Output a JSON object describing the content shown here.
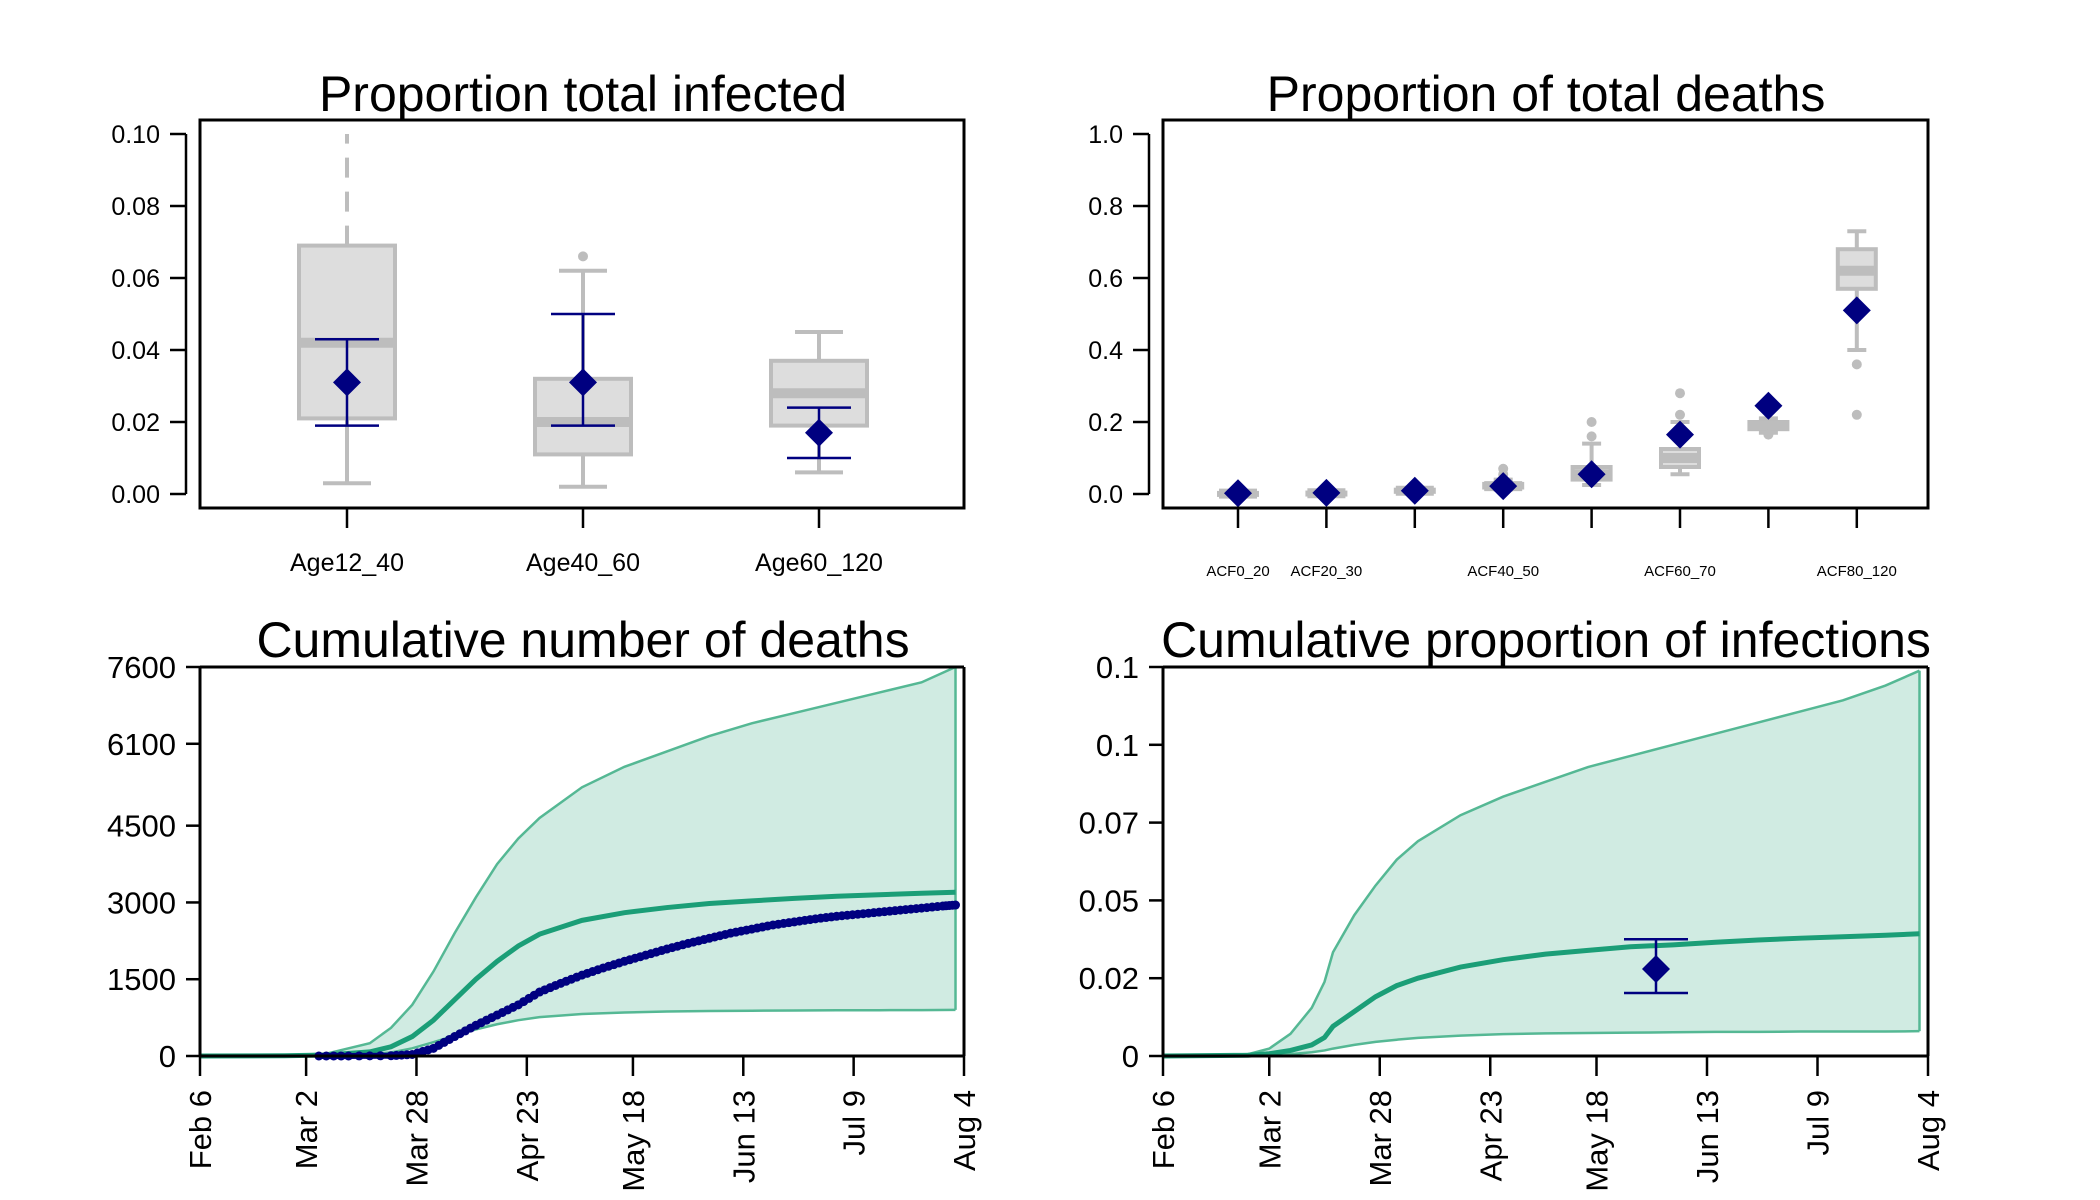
{
  "colors": {
    "box_fill": "#dddddd",
    "box_stroke": "#bdbdbd",
    "observed": "#000080",
    "band_fill": "#d0ebe2",
    "band_line": "#55b894",
    "median_line": "#1b9e77"
  },
  "chart_data": [
    {
      "type": "box",
      "title": "Proportion total infected",
      "categories": [
        "Age12_40",
        "Age40_60",
        "Age60_120"
      ],
      "ylim": [
        0,
        0.1
      ],
      "yticks": [
        "0.00",
        "0.02",
        "0.04",
        "0.06",
        "0.08",
        "0.10"
      ],
      "ytick_values": [
        0,
        0.02,
        0.04,
        0.06,
        0.08,
        0.1
      ],
      "boxes": [
        {
          "whisker_low": 0.003,
          "q1": 0.021,
          "median": 0.042,
          "q3": 0.069,
          "whisker_high": 0.1,
          "whisker_dashed": true,
          "outliers": []
        },
        {
          "whisker_low": 0.002,
          "q1": 0.011,
          "median": 0.02,
          "q3": 0.032,
          "whisker_high": 0.062,
          "whisker_dashed": false,
          "outliers": [
            0.066
          ]
        },
        {
          "whisker_low": 0.006,
          "q1": 0.019,
          "median": 0.028,
          "q3": 0.037,
          "whisker_high": 0.045,
          "whisker_dashed": false,
          "outliers": []
        }
      ],
      "observed": [
        {
          "value": 0.031,
          "low": 0.019,
          "high": 0.043
        },
        {
          "value": 0.031,
          "low": 0.019,
          "high": 0.05
        },
        {
          "value": 0.017,
          "low": 0.01,
          "high": 0.024
        }
      ]
    },
    {
      "type": "box",
      "title": "Proportion of total deaths",
      "categories": [
        "",
        "",
        "",
        "",
        "",
        "",
        "",
        ""
      ],
      "category_labels": [
        {
          "index": 0,
          "label": "ACF0_20"
        },
        {
          "index": 1,
          "label": "ACF20_30"
        },
        {
          "index": 3,
          "label": "ACF40_50"
        },
        {
          "index": 5,
          "label": "ACF60_70"
        },
        {
          "index": 7,
          "label": "ACF80_120"
        }
      ],
      "ylim": [
        0,
        1
      ],
      "yticks": [
        "0.0",
        "0.2",
        "0.4",
        "0.6",
        "0.8",
        "1.0"
      ],
      "ytick_values": [
        0,
        0.2,
        0.4,
        0.6,
        0.8,
        1.0
      ],
      "boxes": [
        {
          "whisker_low": 0.0,
          "q1": 0.0,
          "median": 0.001,
          "q3": 0.003,
          "whisker_high": 0.006,
          "outliers": []
        },
        {
          "whisker_low": 0.0,
          "q1": 0.001,
          "median": 0.002,
          "q3": 0.004,
          "whisker_high": 0.008,
          "outliers": []
        },
        {
          "whisker_low": 0.003,
          "q1": 0.006,
          "median": 0.009,
          "q3": 0.012,
          "whisker_high": 0.018,
          "outliers": []
        },
        {
          "whisker_low": 0.012,
          "q1": 0.018,
          "median": 0.022,
          "q3": 0.028,
          "whisker_high": 0.04,
          "outliers": [
            0.055,
            0.07
          ]
        },
        {
          "whisker_low": 0.025,
          "q1": 0.04,
          "median": 0.055,
          "q3": 0.075,
          "whisker_high": 0.14,
          "outliers": [
            0.16,
            0.2
          ]
        },
        {
          "whisker_low": 0.055,
          "q1": 0.075,
          "median": 0.1,
          "q3": 0.125,
          "whisker_high": 0.2,
          "outliers": [
            0.22,
            0.28
          ]
        },
        {
          "whisker_low": 0.17,
          "q1": 0.18,
          "median": 0.19,
          "q3": 0.2,
          "whisker_high": 0.21,
          "outliers": [
            0.165
          ]
        },
        {
          "whisker_low": 0.4,
          "q1": 0.57,
          "median": 0.62,
          "q3": 0.68,
          "whisker_high": 0.73,
          "outliers": [
            0.36,
            0.22
          ]
        }
      ],
      "observed": [
        {
          "value": 0.002
        },
        {
          "value": 0.003
        },
        {
          "value": 0.009
        },
        {
          "value": 0.022
        },
        {
          "value": 0.055
        },
        {
          "value": 0.165
        },
        {
          "value": 0.245
        },
        {
          "value": 0.51
        }
      ]
    },
    {
      "type": "area",
      "title": "Cumulative number of deaths",
      "yticks": [
        "0",
        "1500",
        "3000",
        "4500",
        "6100",
        "7600"
      ],
      "ytick_values": [
        0,
        1500,
        3000,
        4500,
        6100,
        7600
      ],
      "ylim": [
        0,
        7600
      ],
      "xticks": [
        "Feb 6",
        "Mar 2",
        "Mar 28",
        "Apr 23",
        "May 18",
        "Jun 13",
        "Jul 9",
        "Aug 4"
      ],
      "xtick_days": [
        0,
        25,
        51,
        77,
        102,
        128,
        154,
        180
      ],
      "x": [
        0,
        20,
        30,
        40,
        45,
        50,
        55,
        60,
        65,
        70,
        75,
        80,
        90,
        100,
        110,
        120,
        130,
        140,
        150,
        160,
        170,
        178
      ],
      "upper": [
        0,
        10,
        50,
        250,
        550,
        1000,
        1650,
        2400,
        3100,
        3750,
        4250,
        4650,
        5250,
        5650,
        5950,
        6250,
        6500,
        6700,
        6900,
        7100,
        7300,
        7600
      ],
      "median": [
        0,
        5,
        20,
        80,
        180,
        380,
        700,
        1100,
        1500,
        1850,
        2150,
        2380,
        2650,
        2800,
        2900,
        2980,
        3030,
        3080,
        3120,
        3150,
        3180,
        3200
      ],
      "lower": [
        0,
        2,
        8,
        30,
        70,
        150,
        270,
        400,
        520,
        620,
        700,
        760,
        820,
        850,
        870,
        880,
        885,
        890,
        893,
        895,
        897,
        900
      ],
      "observed": [
        [
          28,
          0
        ],
        [
          35,
          0
        ],
        [
          45,
          5
        ],
        [
          50,
          30
        ],
        [
          55,
          150
        ],
        [
          60,
          380
        ],
        [
          65,
          600
        ],
        [
          70,
          800
        ],
        [
          75,
          1000
        ],
        [
          80,
          1250
        ],
        [
          85,
          1420
        ],
        [
          90,
          1580
        ],
        [
          95,
          1720
        ],
        [
          100,
          1850
        ],
        [
          105,
          1970
        ],
        [
          110,
          2090
        ],
        [
          115,
          2200
        ],
        [
          120,
          2300
        ],
        [
          125,
          2400
        ],
        [
          130,
          2480
        ],
        [
          135,
          2560
        ],
        [
          140,
          2620
        ],
        [
          145,
          2680
        ],
        [
          150,
          2730
        ],
        [
          155,
          2770
        ],
        [
          160,
          2810
        ],
        [
          165,
          2850
        ],
        [
          170,
          2890
        ],
        [
          175,
          2930
        ],
        [
          178,
          2950
        ]
      ]
    },
    {
      "type": "area",
      "title": "Cumulative proportion of infections",
      "yticks": [
        "0",
        "0.02",
        "0.05",
        "0.07",
        "0.1",
        "0.1"
      ],
      "ytick_values": [
        0,
        0.021,
        0.042,
        0.063,
        0.084,
        0.105
      ],
      "ylim": [
        0,
        0.105
      ],
      "xticks": [
        "Feb 6",
        "Mar 2",
        "Mar 28",
        "Apr 23",
        "May 18",
        "Jun 13",
        "Jul 9",
        "Aug 4"
      ],
      "xtick_days": [
        0,
        25,
        51,
        77,
        102,
        128,
        154,
        180
      ],
      "x": [
        0,
        20,
        25,
        30,
        35,
        38,
        40,
        45,
        50,
        55,
        60,
        70,
        80,
        90,
        100,
        110,
        120,
        130,
        140,
        150,
        160,
        170,
        178
      ],
      "upper": [
        0,
        0.0005,
        0.002,
        0.006,
        0.013,
        0.02,
        0.028,
        0.038,
        0.046,
        0.053,
        0.058,
        0.065,
        0.07,
        0.074,
        0.078,
        0.081,
        0.084,
        0.087,
        0.09,
        0.093,
        0.096,
        0.1,
        0.104
      ],
      "median": [
        0,
        0.0002,
        0.0006,
        0.0015,
        0.003,
        0.005,
        0.008,
        0.012,
        0.016,
        0.019,
        0.021,
        0.024,
        0.026,
        0.0275,
        0.0285,
        0.0295,
        0.03,
        0.0307,
        0.0313,
        0.0318,
        0.0322,
        0.0326,
        0.033
      ],
      "lower": [
        0,
        0.0001,
        0.0002,
        0.0005,
        0.001,
        0.0015,
        0.002,
        0.003,
        0.0038,
        0.0044,
        0.0049,
        0.0055,
        0.0059,
        0.0061,
        0.0062,
        0.0063,
        0.0064,
        0.0065,
        0.0065,
        0.0066,
        0.0066,
        0.0066,
        0.0067
      ],
      "observed_point": {
        "x": 116,
        "value": 0.0235,
        "low": 0.017,
        "high": 0.0315
      }
    }
  ]
}
